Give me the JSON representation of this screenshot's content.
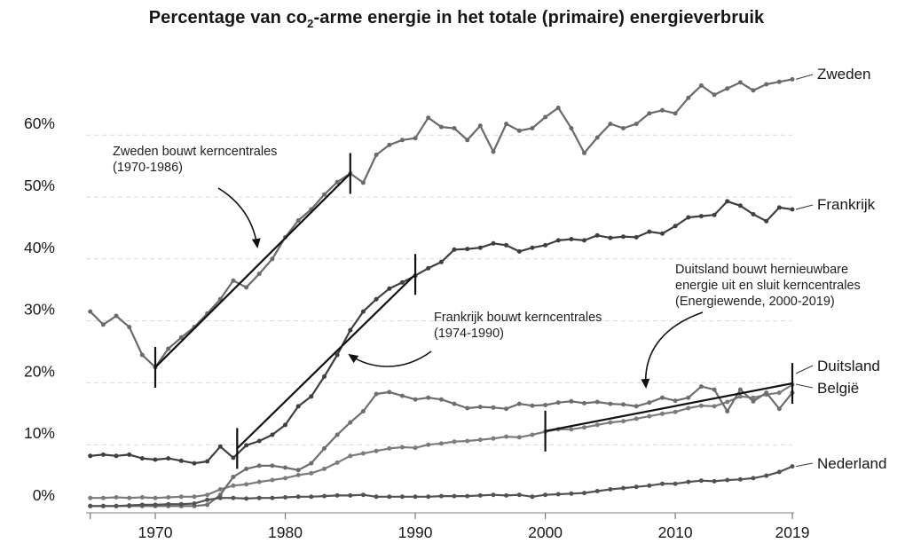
{
  "title": {
    "pre": "Percentage van co",
    "sub": "2",
    "post": "-arme energie in het totale (primaire) energieverbruik"
  },
  "chart_data": {
    "type": "line",
    "x": [
      1965,
      1966,
      1967,
      1968,
      1969,
      1970,
      1971,
      1972,
      1973,
      1974,
      1975,
      1976,
      1977,
      1978,
      1979,
      1980,
      1981,
      1982,
      1983,
      1984,
      1985,
      1986,
      1987,
      1988,
      1989,
      1990,
      1991,
      1992,
      1993,
      1994,
      1995,
      1996,
      1997,
      1998,
      1999,
      2000,
      2001,
      2002,
      2003,
      2004,
      2005,
      2006,
      2007,
      2008,
      2009,
      2010,
      2011,
      2012,
      2013,
      2014,
      2015,
      2016,
      2017,
      2018,
      2019
    ],
    "series": [
      {
        "name": "Zweden",
        "slug": "zweden",
        "color": "#6a6a6a",
        "values": [
          31.5,
          29.4,
          30.8,
          29.0,
          24.5,
          22.5,
          25.5,
          27.3,
          29.0,
          31.2,
          33.5,
          36.5,
          35.4,
          37.6,
          40.0,
          43.5,
          46.2,
          48.0,
          50.4,
          52.4,
          53.8,
          52.3,
          56.8,
          58.4,
          59.2,
          59.5,
          62.8,
          61.3,
          61.1,
          59.2,
          61.5,
          57.3,
          61.8,
          60.7,
          61.1,
          62.9,
          64.4,
          61.1,
          57.1,
          59.6,
          61.8,
          61.1,
          61.8,
          63.5,
          64.0,
          63.5,
          66.0,
          68.0,
          66.5,
          67.5,
          68.5,
          67.2,
          68.2,
          68.6,
          69.0
        ]
      },
      {
        "name": "Frankrijk",
        "slug": "frankrijk",
        "color": "#3f3f3f",
        "values": [
          8.2,
          8.4,
          8.2,
          8.4,
          7.8,
          7.6,
          7.8,
          7.4,
          7.0,
          7.3,
          9.7,
          7.9,
          9.9,
          10.6,
          11.6,
          13.2,
          16.2,
          17.8,
          21.0,
          24.5,
          28.5,
          31.5,
          33.5,
          35.2,
          36.2,
          37.3,
          38.5,
          39.5,
          41.5,
          41.6,
          41.8,
          42.5,
          42.2,
          41.2,
          41.8,
          42.2,
          43.0,
          43.2,
          43.0,
          43.8,
          43.4,
          43.6,
          43.5,
          44.4,
          44.1,
          45.3,
          46.7,
          46.9,
          47.1,
          49.3,
          48.6,
          47.2,
          46.1,
          48.3,
          48.0
        ]
      },
      {
        "name": "Duitsland",
        "slug": "duitsland",
        "color": "#7b7b7b",
        "values": [
          1.4,
          1.4,
          1.5,
          1.4,
          1.5,
          1.4,
          1.5,
          1.6,
          1.6,
          1.9,
          2.8,
          3.4,
          3.6,
          4.0,
          4.3,
          4.6,
          5.1,
          5.4,
          6.1,
          7.1,
          8.2,
          8.6,
          9.0,
          9.4,
          9.6,
          9.5,
          10.0,
          10.2,
          10.5,
          10.6,
          10.8,
          11.0,
          11.3,
          11.2,
          11.6,
          12.1,
          12.5,
          12.5,
          12.8,
          13.2,
          13.6,
          13.8,
          14.2,
          14.6,
          15.0,
          15.3,
          15.9,
          16.3,
          16.2,
          16.9,
          17.8,
          17.6,
          18.1,
          18.4,
          19.7
        ]
      },
      {
        "name": "België",
        "slug": "belgie",
        "color": "#6d6d6d",
        "values": [
          0.1,
          0.1,
          0.1,
          0.1,
          0.1,
          0.1,
          0.1,
          0.1,
          0.1,
          0.3,
          1.9,
          4.8,
          6.1,
          6.6,
          6.6,
          6.3,
          5.9,
          7.0,
          9.4,
          11.6,
          13.6,
          15.4,
          18.2,
          18.5,
          17.9,
          17.3,
          17.6,
          17.3,
          16.6,
          15.9,
          16.1,
          16.0,
          15.8,
          16.6,
          16.3,
          16.4,
          16.8,
          17.0,
          16.7,
          16.9,
          16.6,
          16.5,
          16.2,
          16.8,
          17.6,
          17.1,
          17.6,
          19.4,
          18.9,
          15.4,
          18.9,
          17.0,
          18.4,
          15.8,
          18.4
        ]
      },
      {
        "name": "Nederland",
        "slug": "nederland",
        "color": "#525252",
        "values": [
          0.1,
          0.1,
          0.1,
          0.2,
          0.3,
          0.3,
          0.4,
          0.4,
          0.5,
          1.1,
          1.4,
          1.4,
          1.3,
          1.4,
          1.4,
          1.5,
          1.6,
          1.6,
          1.7,
          1.8,
          1.8,
          1.9,
          1.6,
          1.6,
          1.6,
          1.6,
          1.6,
          1.7,
          1.7,
          1.7,
          1.8,
          1.9,
          1.8,
          1.9,
          1.6,
          1.9,
          2.0,
          2.1,
          2.2,
          2.5,
          2.8,
          3.0,
          3.2,
          3.4,
          3.7,
          3.7,
          4.0,
          4.2,
          4.1,
          4.3,
          4.4,
          4.6,
          5.0,
          5.6,
          6.5
        ]
      }
    ],
    "y_ticks": [
      {
        "label": "0%",
        "value": 0
      },
      {
        "label": "10%",
        "value": 10
      },
      {
        "label": "20%",
        "value": 20
      },
      {
        "label": "30%",
        "value": 30
      },
      {
        "label": "40%",
        "value": 40
      },
      {
        "label": "50%",
        "value": 50
      },
      {
        "label": "60%",
        "value": 60
      }
    ],
    "x_ticks": [
      {
        "label": "1970",
        "year": 1970
      },
      {
        "label": "1980",
        "year": 1980
      },
      {
        "label": "1990",
        "year": 1990
      },
      {
        "label": "2000",
        "year": 2000
      },
      {
        "label": "2010",
        "year": 2010
      },
      {
        "label": "2019",
        "year": 2019
      }
    ],
    "xlim": [
      1965,
      2019
    ],
    "ylim": [
      0,
      70
    ],
    "grid": "horizontal-dashed",
    "legend_position": "right-inline",
    "trend_lines": [
      {
        "series": "Zweden",
        "from": {
          "year": 1970,
          "value": 22.5
        },
        "to": {
          "year": 1985,
          "value": 53.8
        }
      },
      {
        "series": "Frankrijk",
        "from": {
          "year": 1976.3,
          "value": 9.4
        },
        "to": {
          "year": 1990,
          "value": 37.5
        }
      },
      {
        "series": "Duitsland",
        "from": {
          "year": 2000,
          "value": 12.2
        },
        "to": {
          "year": 2019,
          "value": 19.9
        }
      }
    ]
  },
  "annotations": [
    {
      "line1": "Zweden bouwt kerncentrales",
      "line2": "(1970-1986)",
      "line3": ""
    },
    {
      "line1": "Frankrijk bouwt kerncentrales",
      "line2": "(1974-1990)",
      "line3": ""
    },
    {
      "line1": "Duitsland bouwt hernieuwbare",
      "line2": "energie uit en sluit kerncentrales",
      "line3": "(Energiewende, 2000-2019)"
    }
  ],
  "colors": {
    "grid": "#d9d9d9",
    "axis": "#9a9a9a",
    "trend": "#111111",
    "text": "#1a1a1a"
  }
}
